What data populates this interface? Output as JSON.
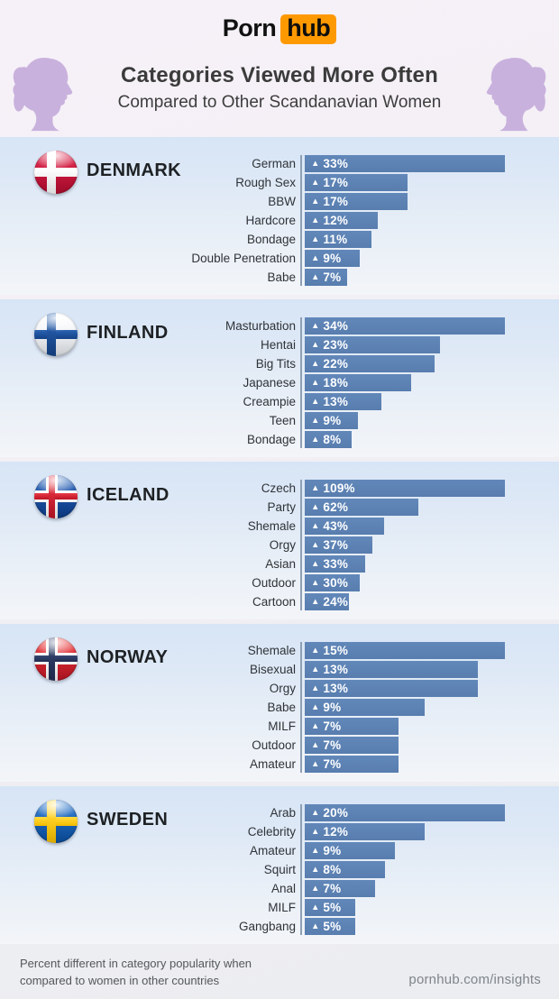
{
  "header": {
    "logo_part1": "Porn",
    "logo_part2": "hub",
    "title": "Categories Viewed More Often",
    "subtitle": "Compared to Other Scandanavian Women"
  },
  "chart_data": [
    {
      "type": "bar",
      "orientation": "horizontal",
      "country": "DENMARK",
      "flag": "denmark",
      "unit": "%",
      "marker": "▲",
      "scale": "bars sized relative to section max",
      "categories": [
        "German",
        "Rough Sex",
        "BBW",
        "Hardcore",
        "Bondage",
        "Double Penetration",
        "Babe"
      ],
      "values": [
        33,
        17,
        17,
        12,
        11,
        9,
        7
      ]
    },
    {
      "type": "bar",
      "orientation": "horizontal",
      "country": "FINLAND",
      "flag": "finland",
      "unit": "%",
      "marker": "▲",
      "scale": "bars sized relative to section max",
      "categories": [
        "Masturbation",
        "Hentai",
        "Big Tits",
        "Japanese",
        "Creampie",
        "Teen",
        "Bondage"
      ],
      "values": [
        34,
        23,
        22,
        18,
        13,
        9,
        8
      ]
    },
    {
      "type": "bar",
      "orientation": "horizontal",
      "country": "ICELAND",
      "flag": "iceland",
      "unit": "%",
      "marker": "▲",
      "scale": "bars sized relative to section max",
      "categories": [
        "Czech",
        "Party",
        "Shemale",
        "Orgy",
        "Asian",
        "Outdoor",
        "Cartoon"
      ],
      "values": [
        109,
        62,
        43,
        37,
        33,
        30,
        24
      ]
    },
    {
      "type": "bar",
      "orientation": "horizontal",
      "country": "NORWAY",
      "flag": "norway",
      "unit": "%",
      "marker": "▲",
      "scale": "bars sized relative to section max",
      "categories": [
        "Shemale",
        "Bisexual",
        "Orgy",
        "Babe",
        "MILF",
        "Outdoor",
        "Amateur"
      ],
      "values": [
        15,
        13,
        13,
        9,
        7,
        7,
        7
      ]
    },
    {
      "type": "bar",
      "orientation": "horizontal",
      "country": "SWEDEN",
      "flag": "sweden",
      "unit": "%",
      "marker": "▲",
      "scale": "bars sized relative to section max",
      "categories": [
        "Arab",
        "Celebrity",
        "Amateur",
        "Squirt",
        "Anal",
        "MILF",
        "Gangbang"
      ],
      "values": [
        20,
        12,
        9,
        8,
        7,
        5,
        5
      ]
    }
  ],
  "footer": {
    "note_lines": [
      "Percent different in category popularity when",
      "compared to women in other countries"
    ],
    "site": "pornhub.com/insights"
  },
  "colors": {
    "bar_blue": "#5d82b5",
    "axis_gray_blue": "#8da0b5",
    "panel_blue_top": "#d7e5f6",
    "logo_orange": "#ff9900",
    "silhouette_purple": "#c9b1dd"
  }
}
